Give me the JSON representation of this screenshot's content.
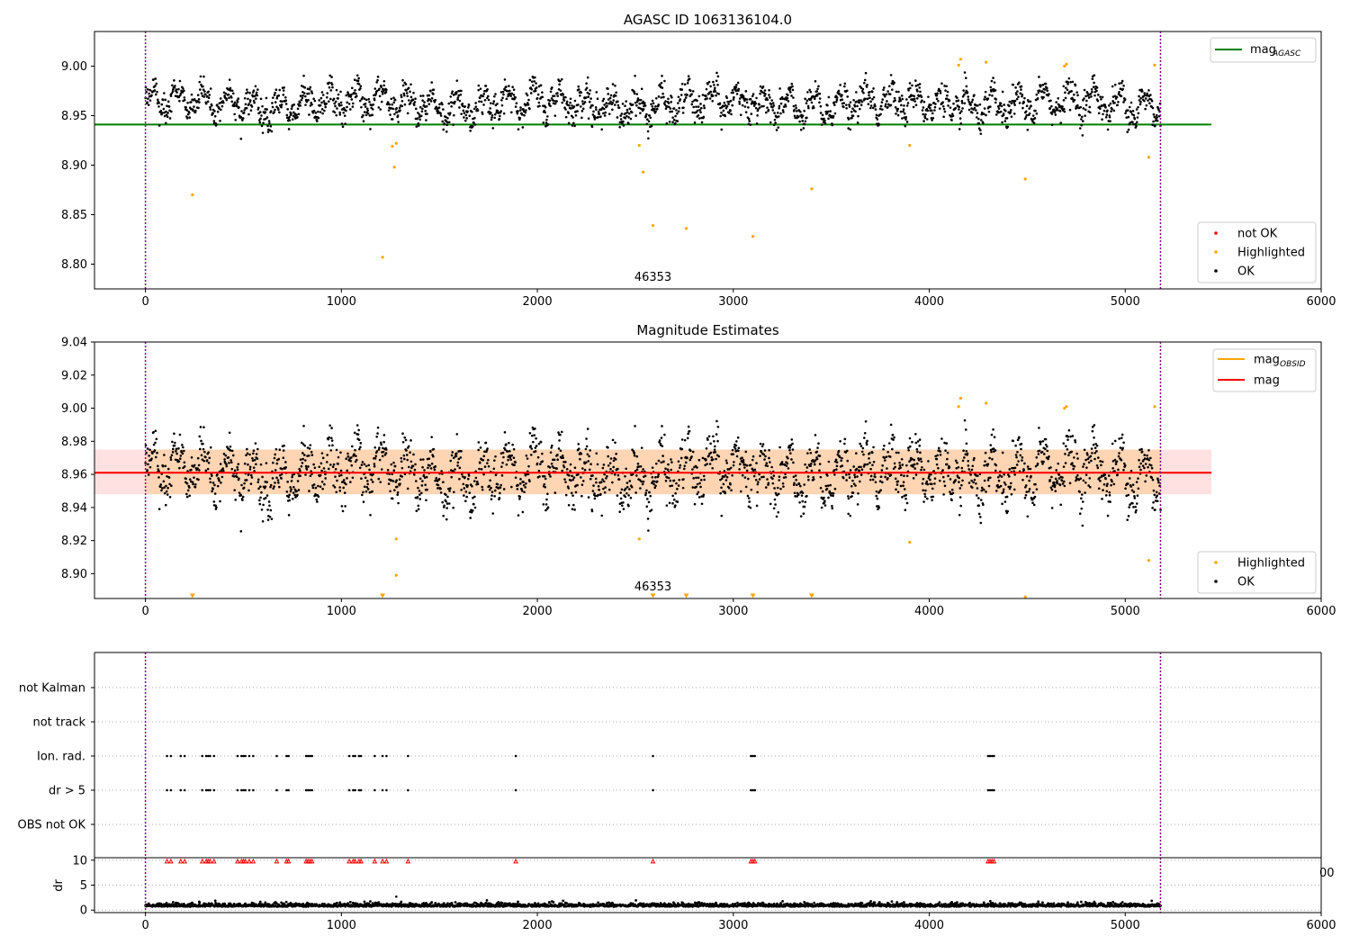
{
  "chart_data": [
    {
      "type": "scatter",
      "title": "AGASC ID 1063136104.0",
      "xlim": [
        -260,
        6000
      ],
      "ylim": [
        8.775,
        9.035
      ],
      "xticks": [
        0,
        1000,
        2000,
        3000,
        4000,
        5000,
        6000
      ],
      "xtick_labels": [
        "0",
        "1000",
        "2000",
        "3000",
        "4000",
        "5000",
        "6000"
      ],
      "yticks": [
        8.8,
        8.85,
        8.9,
        8.95,
        9.0
      ],
      "ytick_labels": [
        "8.80",
        "8.85",
        "8.90",
        "8.95",
        "9.00"
      ],
      "grid": false,
      "vlines": [
        0,
        5180
      ],
      "vline_color": "#800080",
      "obsid_label": {
        "text": "46353",
        "x": 2590
      },
      "hline": {
        "name": "mag_AGASC",
        "y": 8.941,
        "x_range": [
          -260,
          5440
        ],
        "color": "#008000"
      },
      "ok_series": {
        "name": "OK",
        "color": "#000000",
        "x_max": 5180,
        "mean": 8.962,
        "n_points": 2300
      },
      "highlighted": {
        "name": "Highlighted",
        "color": "#ffa500",
        "points": [
          [
            240,
            8.87
          ],
          [
            1210,
            8.807
          ],
          [
            1260,
            8.919
          ],
          [
            1270,
            8.898
          ],
          [
            1280,
            8.922
          ],
          [
            2520,
            8.92
          ],
          [
            2540,
            8.893
          ],
          [
            2590,
            8.839
          ],
          [
            2760,
            8.836
          ],
          [
            3100,
            8.828
          ],
          [
            3400,
            8.876
          ],
          [
            3900,
            8.92
          ],
          [
            4150,
            9.001
          ],
          [
            4160,
            9.007
          ],
          [
            4290,
            9.004
          ],
          [
            4490,
            8.886
          ],
          [
            4690,
            9.0
          ],
          [
            4700,
            9.002
          ],
          [
            5120,
            8.908
          ],
          [
            5150,
            9.001
          ]
        ]
      },
      "legend_lines": {
        "position": "upper right",
        "entries": [
          {
            "label": "mag",
            "subscript": "AGASC",
            "color": "#008000"
          }
        ]
      },
      "legend_points": {
        "position": "lower right",
        "entries": [
          {
            "label": "not OK",
            "color": "#ff0000"
          },
          {
            "label": "Highlighted",
            "color": "#ffa500"
          },
          {
            "label": "OK",
            "color": "#000000"
          }
        ]
      }
    },
    {
      "type": "scatter",
      "title": "Magnitude Estimates",
      "xlim": [
        -260,
        6000
      ],
      "ylim": [
        8.885,
        9.04
      ],
      "xticks": [
        0,
        1000,
        2000,
        3000,
        4000,
        5000,
        6000
      ],
      "xtick_labels": [
        "0",
        "1000",
        "2000",
        "3000",
        "4000",
        "5000",
        "6000"
      ],
      "yticks": [
        8.9,
        8.92,
        8.94,
        8.96,
        8.98,
        9.0,
        9.02,
        9.04
      ],
      "ytick_labels": [
        "8.90",
        "8.92",
        "8.94",
        "8.96",
        "8.98",
        "9.00",
        "9.02",
        "9.04"
      ],
      "grid": false,
      "vlines": [
        0,
        5180
      ],
      "vline_color": "#800080",
      "obsid_label": {
        "text": "46353",
        "x": 2590
      },
      "mag_line": {
        "name": "mag",
        "y": 8.961,
        "x_range": [
          -260,
          5440
        ],
        "color": "#ff0000"
      },
      "mag_band": {
        "y_range": [
          8.948,
          8.975
        ],
        "x_range": [
          -260,
          5440
        ],
        "color": "#ffaaaa"
      },
      "mag_obsid_band": {
        "name": "mag_OBSID",
        "y_range": [
          8.948,
          8.975
        ],
        "x_range": [
          0,
          5180
        ],
        "color": "#ffa500"
      },
      "ok_series": {
        "name": "OK",
        "color": "#000000",
        "x_max": 5180,
        "mean": 8.961,
        "n_points": 2300
      },
      "highlighted": {
        "name": "Highlighted",
        "color": "#ffa500",
        "points": [
          [
            1280,
            8.921
          ],
          [
            1280,
            8.899
          ],
          [
            2520,
            8.921
          ],
          [
            3900,
            8.919
          ],
          [
            4150,
            9.001
          ],
          [
            4160,
            9.006
          ],
          [
            4290,
            9.003
          ],
          [
            4490,
            8.886
          ],
          [
            4690,
            9.0
          ],
          [
            4700,
            9.001
          ],
          [
            5120,
            8.908
          ],
          [
            5150,
            9.001
          ]
        ],
        "below_axis_markers": [
          240,
          1210,
          2590,
          2760,
          3100,
          3400
        ]
      },
      "legend_lines": {
        "position": "upper right",
        "entries": [
          {
            "label": "mag",
            "subscript": "OBSID",
            "color": "#ffa500"
          },
          {
            "label": "mag",
            "subscript": "",
            "color": "#ff0000"
          }
        ]
      },
      "legend_points": {
        "position": "lower right",
        "entries": [
          {
            "label": "Highlighted",
            "color": "#ffa500"
          },
          {
            "label": "OK",
            "color": "#000000"
          }
        ]
      }
    },
    {
      "type": "scatter",
      "title": "",
      "xlim": [
        -260,
        6000
      ],
      "categories": [
        "not Kalman",
        "not track",
        "Ion. rad.",
        "dr > 5",
        "OBS not OK"
      ],
      "grid": "y-dotted",
      "vlines": [
        0,
        5180
      ],
      "vline_color": "#800080",
      "flag_times": [
        110,
        130,
        180,
        200,
        290,
        310,
        320,
        330,
        350,
        470,
        490,
        500,
        510,
        530,
        550,
        670,
        720,
        730,
        820,
        830,
        840,
        850,
        1040,
        1060,
        1070,
        1090,
        1100,
        1170,
        1210,
        1230,
        1340,
        1890,
        2590,
        3090,
        3100,
        3110,
        4300,
        4310,
        4320,
        4330
      ],
      "flag_rows": [
        "Ion. rad.",
        "dr > 5"
      ],
      "flag_color": "#000000"
    },
    {
      "type": "scatter",
      "title": "",
      "ylabel": "dr",
      "xlim": [
        -260,
        6000
      ],
      "ylim": [
        -0.5,
        10.5
      ],
      "xticks": [
        0,
        1000,
        2000,
        3000,
        4000,
        5000,
        6000
      ],
      "xtick_labels": [
        "0",
        "1000",
        "2000",
        "3000",
        "4000",
        "5000",
        "6000"
      ],
      "yticks": [
        0,
        5,
        10
      ],
      "ytick_labels": [
        "0",
        "5",
        "10"
      ],
      "grid": "y-dotted",
      "vlines": [
        0,
        5180
      ],
      "vline_color": "#800080",
      "stray_tick_label": "00",
      "dr_series": {
        "name": "dr",
        "color": "#000000",
        "x_max": 5180,
        "mean": 0.8
      },
      "clipped_markers": {
        "y": 9.8,
        "color": "#ff0000",
        "x": [
          110,
          130,
          180,
          200,
          290,
          310,
          320,
          330,
          350,
          470,
          490,
          500,
          510,
          530,
          550,
          670,
          720,
          730,
          820,
          830,
          840,
          850,
          1040,
          1060,
          1070,
          1090,
          1100,
          1170,
          1210,
          1230,
          1340,
          1890,
          2590,
          3090,
          3100,
          3110,
          4300,
          4310,
          4320,
          4330
        ]
      }
    }
  ]
}
